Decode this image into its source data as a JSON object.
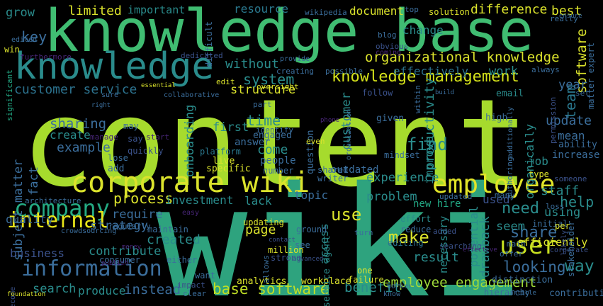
{
  "palette": {
    "background": "#000000",
    "lime": "#a6db2d",
    "yellow": "#dbe32c",
    "green": "#5ec962",
    "teal": "#22a884",
    "blue": "#3b6e9c",
    "darkblue": "#2c558c",
    "cyan": "#1f9e89",
    "purple": "#482677",
    "violet": "#443983"
  },
  "words": [
    {
      "t": "content",
      "c": "#a6db2d"
    },
    {
      "t": "wiki",
      "c": "#2ea37e"
    },
    {
      "t": "knowledge base",
      "c": "#40bd72"
    },
    {
      "t": "knowledge",
      "c": "#2a8c8c"
    },
    {
      "t": "corporate wiki",
      "c": "#dbe32c"
    },
    {
      "t": "employee",
      "c": "#e1e428"
    },
    {
      "t": "company",
      "c": "#24aa83"
    },
    {
      "t": "information",
      "c": "#3b6e9c"
    },
    {
      "t": "internal",
      "c": "#e7e419"
    },
    {
      "t": "user",
      "c": "#c8e020"
    },
    {
      "t": "knowledge management",
      "c": "#d5e21a"
    },
    {
      "t": "organizational knowledge",
      "c": "#dbe32c"
    },
    {
      "t": "customer service",
      "c": "#2c728e"
    },
    {
      "t": "employee engagement",
      "c": "#9fda3a"
    },
    {
      "t": "base software",
      "c": "#c0df25"
    },
    {
      "t": "looking",
      "c": "#3b6e9c"
    },
    {
      "t": "make",
      "c": "#dbe32c"
    },
    {
      "t": "need",
      "c": "#2a8c8c"
    },
    {
      "t": "share",
      "c": "#3b6e9c"
    },
    {
      "t": "help",
      "c": "#2a8c8c"
    },
    {
      "t": "system",
      "c": "#2a8c8c"
    },
    {
      "t": "team",
      "c": "#2a788e"
    },
    {
      "t": "time",
      "c": "#2a8c8c"
    },
    {
      "t": "find",
      "c": "#2a8c8c"
    },
    {
      "t": "use",
      "c": "#dbe32c"
    },
    {
      "t": "key",
      "c": "#3b6e9c"
    },
    {
      "t": "grow",
      "c": "#2a8c8c"
    },
    {
      "t": "limited",
      "c": "#dbe32c"
    },
    {
      "t": "important",
      "c": "#2a8c8c"
    },
    {
      "t": "resource",
      "c": "#2a788e"
    },
    {
      "t": "document",
      "c": "#dbe32c"
    },
    {
      "t": "difference",
      "c": "#dbe32c"
    },
    {
      "t": "best",
      "c": "#dbe32c"
    },
    {
      "t": "software",
      "c": "#dbe32c"
    },
    {
      "t": "change",
      "c": "#2a8c8c"
    },
    {
      "t": "without",
      "c": "#2a8c8c"
    },
    {
      "t": "structure",
      "c": "#dbe32c"
    },
    {
      "t": "effectively",
      "c": "#2c728e"
    },
    {
      "t": "work",
      "c": "#2a8c8c"
    },
    {
      "t": "year",
      "c": "#3b6e9c"
    },
    {
      "t": "update",
      "c": "#3b6e9c"
    },
    {
      "t": "sharing",
      "c": "#3b6e9c"
    },
    {
      "t": "create",
      "c": "#2a8c8c"
    },
    {
      "t": "example",
      "c": "#3b6e9c"
    },
    {
      "t": "first",
      "c": "#2a8c8c"
    },
    {
      "t": "come",
      "c": "#2a8c8c"
    },
    {
      "t": "process",
      "c": "#dbe32c"
    },
    {
      "t": "investment",
      "c": "#2a8c8c"
    },
    {
      "t": "lack",
      "c": "#2a8c8c"
    },
    {
      "t": "topic",
      "c": "#3b6e9c"
    },
    {
      "t": "problem",
      "c": "#2a8c8c"
    },
    {
      "t": "experience",
      "c": "#2a8c8c"
    },
    {
      "t": "staff",
      "c": "#2a8c8c"
    },
    {
      "t": "require",
      "c": "#3b6e9c"
    },
    {
      "t": "strategy",
      "c": "#3b6e9c"
    },
    {
      "t": "quality",
      "c": "#3b6e9c"
    },
    {
      "t": "page",
      "c": "#dbe32c"
    },
    {
      "t": "created",
      "c": "#2a8c8c"
    },
    {
      "t": "contribute",
      "c": "#2a8c8c"
    },
    {
      "t": "business",
      "c": "#3b528b"
    },
    {
      "t": "result",
      "c": "#2a8c8c"
    },
    {
      "t": "benefit",
      "c": "#2a8c8c"
    },
    {
      "t": "search",
      "c": "#2a8c8c"
    },
    {
      "t": "produce",
      "c": "#2a8c8c"
    },
    {
      "t": "instead",
      "c": "#3b6e9c"
    },
    {
      "t": "way",
      "c": "#2a8c8c"
    },
    {
      "t": "seem",
      "c": "#2a8c8c"
    },
    {
      "t": "using",
      "c": "#2a8c8c"
    },
    {
      "t": "used",
      "c": "#3b528b"
    },
    {
      "t": "new hire",
      "c": "#22a884"
    },
    {
      "t": "productivity",
      "c": "#2a8c8c"
    },
    {
      "t": "improve",
      "c": "#2a8c8c"
    },
    {
      "t": "customer",
      "c": "#2a8c8c"
    },
    {
      "t": "organically",
      "c": "#2a8c8c"
    },
    {
      "t": "drawback",
      "c": "#2a8c8c"
    },
    {
      "t": "potential",
      "c": "#2a8c8c"
    },
    {
      "t": "necessary",
      "c": "#2a8c8c"
    },
    {
      "t": "access",
      "c": "#2a8c8c"
    },
    {
      "t": "subject matter",
      "c": "#3b6e9c"
    },
    {
      "t": "fact",
      "c": "#3b6e9c"
    },
    {
      "t": "onboarding",
      "c": "#2a8c8c"
    },
    {
      "t": "job",
      "c": "#2a8c8c"
    },
    {
      "t": "mean",
      "c": "#3b6e9c"
    },
    {
      "t": "increase",
      "c": "#3b6e9c"
    },
    {
      "t": "ability",
      "c": "#3b6e9c"
    },
    {
      "t": "efficiently",
      "c": "#dbe32c"
    },
    {
      "t": "outdated",
      "c": "#3b6e9c"
    },
    {
      "t": "people",
      "c": "#3b6e9c"
    },
    {
      "t": "answer",
      "c": "#3b6e9c"
    },
    {
      "t": "engaged",
      "c": "#3b6e9c"
    },
    {
      "t": "question",
      "c": "#3b6e9c"
    },
    {
      "t": "live",
      "c": "#dbe32c"
    },
    {
      "t": "shared",
      "c": "#3b6e9c"
    },
    {
      "t": "writer",
      "c": "#3b6e9c"
    },
    {
      "t": "number",
      "c": "#3b6e9c"
    },
    {
      "t": "email",
      "c": "#2a8c8c"
    },
    {
      "t": "follow",
      "c": "#3b528b"
    },
    {
      "t": "high",
      "c": "#3b6e9c"
    },
    {
      "t": "given",
      "c": "#3b6e9c"
    },
    {
      "t": "mindset",
      "c": "#3b6e9c"
    },
    {
      "t": "add",
      "c": "#3b6e9c"
    },
    {
      "t": "lose",
      "c": "#3b6e9c"
    },
    {
      "t": "platform",
      "c": "#2a788e"
    },
    {
      "t": "quickly",
      "c": "#3b528b"
    },
    {
      "t": "say",
      "c": "#3b528b"
    },
    {
      "t": "start",
      "c": "#482677"
    },
    {
      "t": "may",
      "c": "#3b6e9c"
    },
    {
      "t": "manage",
      "c": "#482677"
    },
    {
      "t": "specific",
      "c": "#dbe32c"
    },
    {
      "t": "updating",
      "c": "#dbe32c"
    },
    {
      "t": "ground",
      "c": "#3b6e9c"
    },
    {
      "t": "effort",
      "c": "#2a8c8c"
    },
    {
      "t": "reduce",
      "c": "#3b6e9c"
    },
    {
      "t": "added",
      "c": "#3b528b"
    },
    {
      "t": "editing",
      "c": "#2c728e"
    },
    {
      "t": "maintain",
      "c": "#3b6e9c"
    },
    {
      "t": "consumer",
      "c": "#3b6e9c"
    },
    {
      "t": "either",
      "c": "#3b6e9c"
    },
    {
      "t": "want",
      "c": "#3b6e9c"
    },
    {
      "t": "analytics",
      "c": "#dbe32c"
    },
    {
      "t": "workplace",
      "c": "#dbe32c"
    },
    {
      "t": "failure",
      "c": "#dbe32c"
    },
    {
      "t": "one",
      "c": "#dbe32c"
    },
    {
      "t": "million",
      "c": "#dbe32c"
    },
    {
      "t": "strong",
      "c": "#3b528b"
    },
    {
      "t": "see",
      "c": "#3b6e9c"
    },
    {
      "t": "service agent",
      "c": "#2a8c8c"
    },
    {
      "t": "distinction",
      "c": "#3b6e9c"
    },
    {
      "t": "hierarchy",
      "c": "#3b6e9c"
    },
    {
      "t": "contributing",
      "c": "#3b6e9c"
    },
    {
      "t": "stakeholder",
      "c": "#3b6e9c"
    },
    {
      "t": "difficult",
      "c": "#3b6e9c"
    },
    {
      "t": "matter expert",
      "c": "#3b6e9c"
    },
    {
      "t": "wikipedia",
      "c": "#3b6e9c"
    },
    {
      "t": "blog",
      "c": "#3b6e9c"
    },
    {
      "t": "solution",
      "c": "#dbe32c"
    },
    {
      "t": "top",
      "c": "#3b6e9c"
    },
    {
      "t": "really",
      "c": "#3b6e9c"
    },
    {
      "t": "ensure",
      "c": "#3b6e9c"
    },
    {
      "t": "furthermore",
      "c": "#482677"
    },
    {
      "t": "win",
      "c": "#dbe32c"
    },
    {
      "t": "edited",
      "c": "#3b6e9c"
    },
    {
      "t": "significant",
      "c": "#22a884"
    },
    {
      "t": "dedicated",
      "c": "#3b528b"
    },
    {
      "t": "provide",
      "c": "#3b6e9c"
    },
    {
      "t": "obvious",
      "c": "#3b528b"
    },
    {
      "t": "creating",
      "c": "#3b6e9c"
    },
    {
      "t": "possible",
      "c": "#3b6e9c"
    },
    {
      "t": "oversight",
      "c": "#dbe32c"
    },
    {
      "t": "edit",
      "c": "#dbe32c"
    },
    {
      "t": "collaborative",
      "c": "#3b6e9c"
    },
    {
      "t": "sure",
      "c": "#3b6e9c"
    },
    {
      "t": "essential",
      "c": "#dbe32c"
    },
    {
      "t": "always",
      "c": "#3b6e9c"
    },
    {
      "t": "set",
      "c": "#3b6e9c"
    },
    {
      "t": "part",
      "c": "#3b6e9c"
    },
    {
      "t": "identify",
      "c": "#3b6e9c"
    },
    {
      "t": "even",
      "c": "#dbe32c"
    },
    {
      "t": "organization",
      "c": "#3b6e9c"
    },
    {
      "t": "phone",
      "c": "#482677"
    },
    {
      "t": "within",
      "c": "#3b6e9c"
    },
    {
      "t": "additionally",
      "c": "#3b6e9c"
    },
    {
      "t": "permission",
      "c": "#3b528b"
    },
    {
      "t": "authoring",
      "c": "#3b6e9c"
    },
    {
      "t": "someone",
      "c": "#3b528b"
    },
    {
      "t": "type",
      "c": "#dbe32c"
    },
    {
      "t": "many",
      "c": "#3b6e9c"
    },
    {
      "t": "initial",
      "c": "#3b6e9c"
    },
    {
      "t": "loss",
      "c": "#3b6e9c"
    },
    {
      "t": "updated",
      "c": "#3b6e9c"
    },
    {
      "t": "turn",
      "c": "#3b6e9c"
    },
    {
      "t": "searching",
      "c": "#3b528b"
    },
    {
      "t": "per",
      "c": "#dbe32c"
    },
    {
      "t": "main",
      "c": "#3b6e9c"
    },
    {
      "t": "offer",
      "c": "#3b6e9c"
    },
    {
      "t": "likely",
      "c": "#3b528b"
    },
    {
      "t": "corporate",
      "c": "#3b528b"
    },
    {
      "t": "regularly",
      "c": "#3b6e9c"
    },
    {
      "t": "crowdsourcing",
      "c": "#3b6e9c"
    },
    {
      "t": "easy",
      "c": "#482677"
    },
    {
      "t": "architecture",
      "c": "#3b6e9c"
    },
    {
      "t": "money",
      "c": "#482677"
    },
    {
      "t": "publish",
      "c": "#482677"
    },
    {
      "t": "impact",
      "c": "#3b528b"
    },
    {
      "t": "clear",
      "c": "#3b6e9c"
    },
    {
      "t": "become",
      "c": "#3b528b"
    },
    {
      "t": "foundation",
      "c": "#dbe32c"
    },
    {
      "t": "allows",
      "c": "#3b6e9c"
    },
    {
      "t": "advanced",
      "c": "#3b528b"
    },
    {
      "t": "worker",
      "c": "#3b6e9c"
    },
    {
      "t": "know",
      "c": "#3b6e9c"
    },
    {
      "t": "article",
      "c": "#3b6e9c"
    },
    {
      "t": "build",
      "c": "#3b6e9c"
    },
    {
      "t": "right",
      "c": "#3b6e9c"
    },
    {
      "t": "contact",
      "c": "#3b528b"
    },
    {
      "t": "coming",
      "c": "#482677"
    },
    {
      "t": "effective",
      "c": "#482677"
    }
  ]
}
